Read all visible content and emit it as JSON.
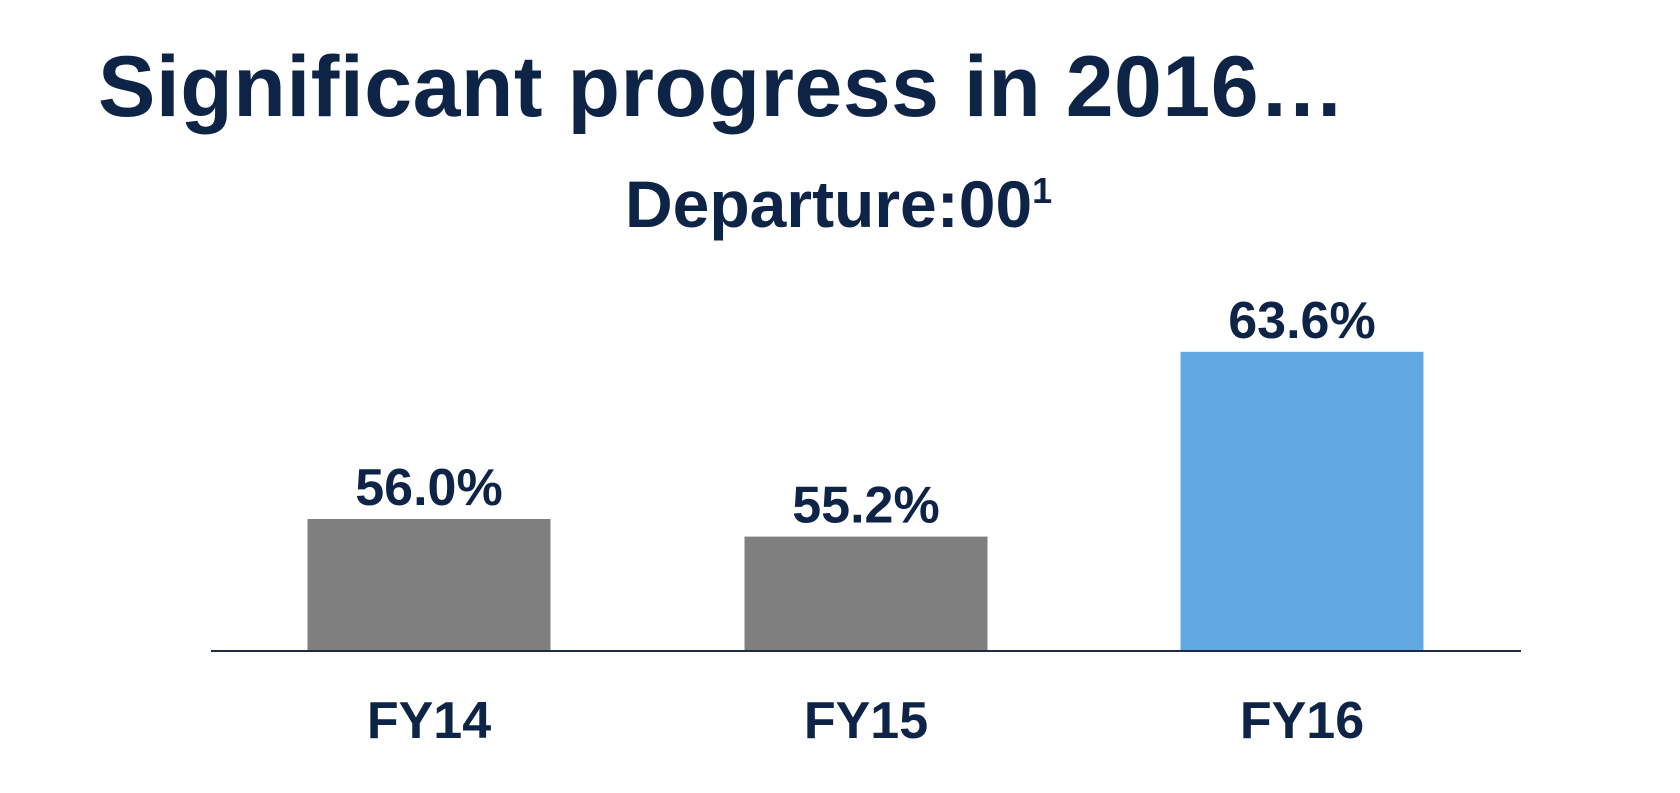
{
  "slide": {
    "title": "Significant progress in 2016…"
  },
  "chart_data": {
    "type": "bar",
    "title": "Departure:00",
    "title_superscript": "1",
    "categories": [
      "FY14",
      "FY15",
      "FY16"
    ],
    "values": [
      56.0,
      55.2,
      63.6
    ],
    "data_labels": [
      "56.0%",
      "55.2%",
      "63.6%"
    ],
    "colors": [
      "#7f7f7f",
      "#7f7f7f",
      "#62a8e0"
    ],
    "xlabel": "",
    "ylabel": "",
    "ylim": [
      50,
      64.5
    ],
    "grid": false,
    "legend": "none"
  },
  "colors": {
    "text": "#0e2446",
    "axis": "#1f2a44"
  }
}
